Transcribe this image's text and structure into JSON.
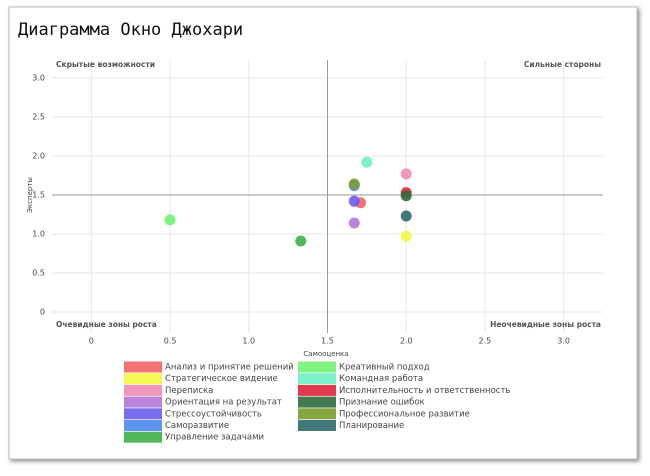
{
  "chart_data": {
    "type": "scatter",
    "title": "Диаграмма Окно Джохари",
    "x_label": "Самооценка",
    "y_label": "Эксперты",
    "xlim": [
      -0.25,
      3.25
    ],
    "ylim": [
      -0.27,
      3.23
    ],
    "xticks": [
      0,
      0.5,
      {
        "value": 1,
        "label": "1.0"
      },
      1.5,
      {
        "value": 2,
        "label": "2.0"
      },
      2.5,
      {
        "value": 3,
        "label": "3.0"
      }
    ],
    "yticks": [
      0,
      0.5,
      {
        "value": 1,
        "label": "1.0"
      },
      1.5,
      {
        "value": 2,
        "label": "2.0"
      },
      2.5,
      {
        "value": 3,
        "label": "3.0"
      }
    ],
    "grid": true,
    "reference_lines": {
      "x": 1.5,
      "y": 1.5
    },
    "quadrants": {
      "top_left": "Скрытые возможности",
      "top_right": "Сильные стороны",
      "bottom_left": "Очевидные зоны роста",
      "bottom_right": "Неочевидные зоны роста"
    },
    "series": [
      {
        "name": "Анализ и принятие решений",
        "color": "#f06464",
        "x": [
          1.71
        ],
        "values": [
          1.4
        ]
      },
      {
        "name": "Стратегическое видение",
        "color": "#f5f542",
        "x": [
          2.0
        ],
        "values": [
          0.97
        ]
      },
      {
        "name": "Переписка",
        "color": "#f08cb4",
        "x": [
          2.0
        ],
        "values": [
          1.77
        ]
      },
      {
        "name": "Ориентация на результат",
        "color": "#b277d6",
        "x": [
          1.67
        ],
        "values": [
          1.14
        ]
      },
      {
        "name": "Стрессоустойчивость",
        "color": "#6a5ef0",
        "x": [
          1.67
        ],
        "values": [
          1.42
        ]
      },
      {
        "name": "Саморазвитие",
        "color": "#4a8af2",
        "x": [
          1.67
        ],
        "values": [
          1.62
        ]
      },
      {
        "name": "Управление задачами",
        "color": "#3fae48",
        "x": [
          1.33
        ],
        "values": [
          0.91
        ]
      },
      {
        "name": "Креативный подход",
        "color": "#72f272",
        "x": [
          0.5
        ],
        "values": [
          1.18
        ]
      },
      {
        "name": "Командная работа",
        "color": "#6ef0c4",
        "x": [
          1.75
        ],
        "values": [
          1.92
        ]
      },
      {
        "name": "Исполнительность и ответственность",
        "color": "#e0243c",
        "x": [
          2.0
        ],
        "values": [
          1.53
        ]
      },
      {
        "name": "Признание ошибок",
        "color": "#2f6b3c",
        "x": [
          2.0
        ],
        "values": [
          1.49
        ]
      },
      {
        "name": "Профессиональное развитие",
        "color": "#7a9c2e",
        "x": [
          1.67
        ],
        "values": [
          1.64
        ]
      },
      {
        "name": "Планирование",
        "color": "#2c6a6c",
        "x": [
          2.0
        ],
        "values": [
          1.23
        ]
      }
    ]
  }
}
